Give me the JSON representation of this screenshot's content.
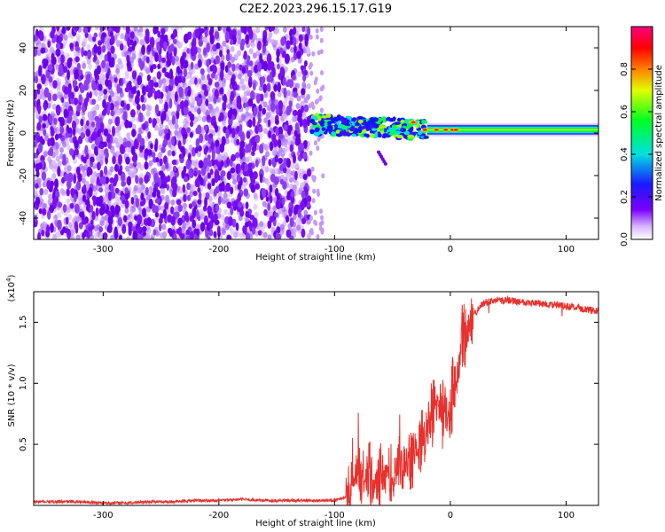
{
  "title": "C2E2.2023.296.15.17.G19",
  "colors": {
    "snr_line": "#e8302c",
    "spectrum_scatter": "#6a00e8",
    "background": "#ffffff",
    "axis": "#000000"
  },
  "chart_data": [
    {
      "type": "heatmap",
      "name": "spectrogram",
      "xlabel": "Height of straight line (km)",
      "ylabel": "Frequency (Hz)",
      "xlim": [
        -360,
        128
      ],
      "ylim": [
        -50,
        50
      ],
      "xticks": [
        -300,
        -200,
        -100,
        0,
        100
      ],
      "yticks": [
        -40,
        -20,
        0,
        20,
        40
      ],
      "grid": false,
      "colorbar": {
        "label": "Normalized spectral amplitude",
        "range": [
          0.0,
          1.0
        ],
        "ticks": [
          0.0,
          0.2,
          0.4,
          0.6,
          0.8
        ],
        "colormap": "rainbow (violet-blue-cyan-green-yellow-red-magenta)"
      },
      "regions": [
        {
          "description": "noise",
          "x_range": [
            -360,
            -122
          ],
          "freq_range": [
            -50,
            50
          ],
          "amplitude": 0.1
        },
        {
          "description": "tracking",
          "x_range": [
            -120,
            -20
          ],
          "freq_center": 4,
          "freq_halfwidth": 5,
          "amplitude": 0.5
        },
        {
          "description": "tone",
          "x_range": [
            -20,
            128
          ],
          "freq_center": 1.5,
          "freq_halfwidth": 3,
          "amplitude": 0.85
        }
      ]
    },
    {
      "type": "line",
      "name": "snr",
      "xlabel": "Height of straight line (km)",
      "ylabel": "SNR (10 * v/v)",
      "scale_label": "(x10",
      "scale_exp": "4",
      "scale_close": ")",
      "xlim": [
        -360,
        128
      ],
      "ylim": [
        0,
        1.75
      ],
      "xticks": [
        -300,
        -200,
        -100,
        0,
        100
      ],
      "yticks": [
        0.5,
        1.0,
        1.5
      ],
      "ytick_labels": [
        "0.5",
        "1.0",
        "1.5"
      ],
      "grid": false,
      "series": [
        {
          "x": [
            -360,
            -340,
            -320,
            -300,
            -280,
            -260,
            -240,
            -220,
            -200,
            -180,
            -160,
            -140,
            -120,
            -100,
            -90,
            -85,
            -80,
            -75,
            -70,
            -65,
            -60,
            -55,
            -50,
            -45,
            -40,
            -35,
            -30,
            -25,
            -22,
            -20,
            -18,
            -15,
            -12,
            -10,
            -8,
            -5,
            -2,
            0,
            2,
            5,
            8,
            10,
            12,
            15,
            18,
            20,
            22,
            25,
            28,
            30,
            35,
            40,
            45,
            50,
            60,
            70,
            80,
            90,
            100,
            110,
            120,
            128
          ],
          "y": [
            0.03,
            0.03,
            0.03,
            0.02,
            0.02,
            0.03,
            0.03,
            0.04,
            0.04,
            0.05,
            0.04,
            0.04,
            0.04,
            0.04,
            0.07,
            0.15,
            0.25,
            0.2,
            0.22,
            0.18,
            0.2,
            0.22,
            0.25,
            0.3,
            0.35,
            0.4,
            0.45,
            0.5,
            0.55,
            0.6,
            0.7,
            0.75,
            0.8,
            0.85,
            0.75,
            0.8,
            0.7,
            0.75,
            0.95,
            1.0,
            1.15,
            1.3,
            1.35,
            1.45,
            1.5,
            1.55,
            1.58,
            1.62,
            1.65,
            1.66,
            1.67,
            1.68,
            1.68,
            1.68,
            1.67,
            1.66,
            1.65,
            1.64,
            1.63,
            1.62,
            1.6,
            1.59
          ]
        }
      ]
    }
  ]
}
